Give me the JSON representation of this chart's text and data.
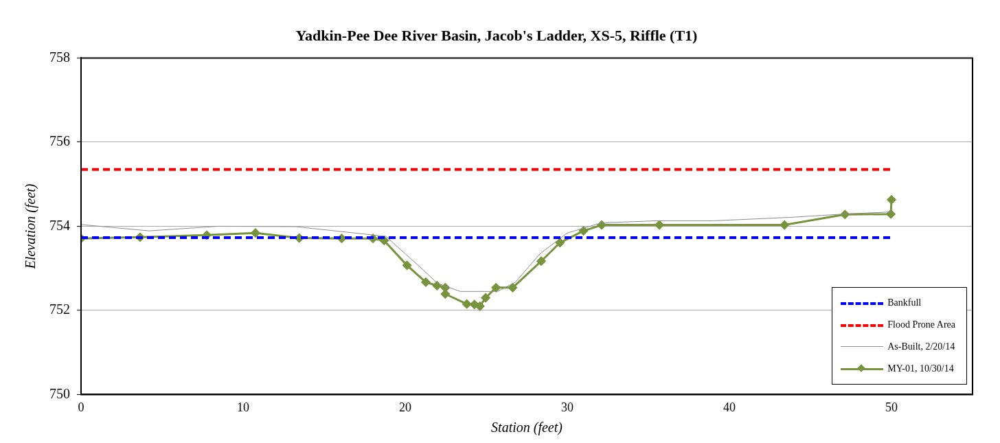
{
  "chart_data": {
    "type": "line",
    "title": "Yadkin-Pee Dee River Basin, Jacob's Ladder, XS-5, Riffle (T1)",
    "xlabel": "Station (feet)",
    "ylabel": "Elevation (feet)",
    "xlim": [
      0,
      55
    ],
    "xticks": [
      0,
      10,
      20,
      30,
      40,
      50
    ],
    "ylim": [
      750,
      758
    ],
    "yticks": [
      750,
      752,
      754,
      756,
      758
    ],
    "grid": "y",
    "legend": "bottom right",
    "series": [
      {
        "name": "Bankfull",
        "color": "#0000ff",
        "line_style": "dashed",
        "marker": "none",
        "x": [
          0,
          50
        ],
        "values": [
          753.73,
          753.73
        ]
      },
      {
        "name": "Flood Prone Area",
        "color": "#ff0000",
        "line_style": "dashed",
        "marker": "none",
        "x": [
          0,
          50
        ],
        "values": [
          755.35,
          755.35
        ]
      },
      {
        "name": "As-Built, 2/20/14",
        "color": "#8c8c8c",
        "line_style": "solid",
        "marker": "none",
        "x": [
          0,
          4.2,
          8.5,
          13.25,
          18.8,
          21,
          22,
          23.4,
          24.8,
          25.7,
          26.8,
          28.3,
          30,
          32.1,
          35.5,
          39,
          43.7,
          47.1,
          50
        ],
        "values": [
          754.04,
          753.89,
          754.0,
          753.99,
          753.76,
          753.0,
          752.64,
          752.45,
          752.45,
          752.45,
          752.67,
          753.34,
          753.84,
          754.08,
          754.13,
          754.13,
          754.21,
          754.29,
          754.34
        ]
      },
      {
        "name": "MY-01, 10/30/14",
        "color": "#77933c",
        "line_style": "solid",
        "marker": "diamond",
        "x": [
          0,
          3.64,
          7.76,
          10.76,
          13.46,
          16.08,
          18.01,
          18.7,
          20.11,
          21.27,
          21.96,
          22.47,
          22.47,
          23.8,
          24.27,
          24.61,
          24.96,
          25.6,
          26.63,
          28.39,
          29.55,
          31.0,
          32.12,
          35.68,
          43.4,
          47.13,
          49.96,
          50
        ],
        "values": [
          753.71,
          753.74,
          753.79,
          753.84,
          753.72,
          753.71,
          753.71,
          753.66,
          753.07,
          752.67,
          752.59,
          752.54,
          752.39,
          752.15,
          752.14,
          752.1,
          752.3,
          752.54,
          752.54,
          753.17,
          753.61,
          753.89,
          754.03,
          754.03,
          754.03,
          754.28,
          754.29,
          754.63
        ]
      }
    ]
  }
}
